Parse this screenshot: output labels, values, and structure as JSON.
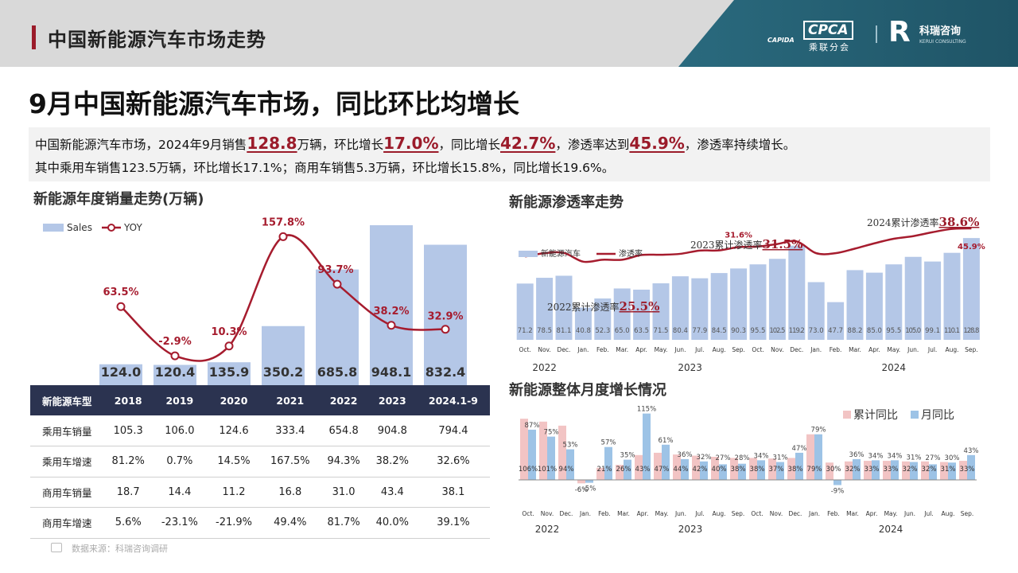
{
  "header": {
    "title": "中国新能源汽车市场走势",
    "cpca_logo": "CAPIDA",
    "cpca_box": "CPCA",
    "cpca_sub": "乘联分会",
    "kerui_mark": "R",
    "kerui_name": "科瑞咨询",
    "kerui_sub": "KERUI CONSULTING"
  },
  "main_title": "9月中国新能源汽车市场，同比环比均增长",
  "summary": {
    "l1_a": "中国新能源汽车市场，2024年9月销售",
    "l1_v1": "128.8",
    "l1_b": "万辆，环比增长",
    "l1_v2": "17.0%",
    "l1_c": "，同比增长",
    "l1_v3": "42.7%",
    "l1_d": "，渗透率达到",
    "l1_v4": "45.9%",
    "l1_e": "，渗透率持续增长。",
    "line2": "其中乘用车销售123.5万辆，环比增长17.1%；商用车销售5.3万辆，环比增长15.8%，同比增长19.6%。"
  },
  "sections": {
    "annual": "新能源年度销量走势(万辆)",
    "penetration": "新能源渗透率走势",
    "growth": "新能源整体月度增长情况"
  },
  "colors": {
    "bar": "#b4c7e7",
    "line": "#a61c2e",
    "pink": "#f2c4c4",
    "blue_bar": "#9dc3e6",
    "title_red": "#9b1b2a",
    "table_head": "#2b3350"
  },
  "chart_data": [
    {
      "id": "annual",
      "type": "bar",
      "legend": [
        "Sales",
        "YOY"
      ],
      "categories": [
        "2018",
        "2019",
        "2020",
        "2021",
        "2022",
        "2023",
        "2024.1-9"
      ],
      "series": [
        {
          "name": "Sales",
          "values": [
            124.0,
            120.4,
            135.9,
            350.2,
            685.8,
            948.1,
            832.4
          ],
          "labels": [
            "124.0",
            "120.4",
            "135.9",
            "350.2",
            "685.8",
            "948.1",
            "832.4"
          ]
        },
        {
          "name": "YOY",
          "values": [
            63.5,
            -2.9,
            10.3,
            157.8,
            93.7,
            38.2,
            32.9
          ],
          "labels": [
            "63.5%",
            "-2.9%",
            "10.3%",
            "157.8%",
            "93.7%",
            "38.2%",
            "32.9%"
          ]
        }
      ],
      "ylim": [
        0,
        1000
      ],
      "y2lim": [
        -20,
        170
      ]
    },
    {
      "id": "penetration",
      "type": "bar",
      "legend": [
        "新能源汽车",
        "渗透率"
      ],
      "categories": [
        "Oct.",
        "Nov.",
        "Dec.",
        "Jan.",
        "Feb.",
        "Mar.",
        "Apr.",
        "May.",
        "Jun.",
        "Jul.",
        "Aug.",
        "Sep.",
        "Oct.",
        "Nov.",
        "Dec.",
        "Jan.",
        "Feb.",
        "Mar.",
        "Apr.",
        "May.",
        "Jun.",
        "Jul.",
        "Aug.",
        "Sep."
      ],
      "years": [
        {
          "label": "2022",
          "from": 0,
          "to": 2
        },
        {
          "label": "2023",
          "from": 3,
          "to": 14
        },
        {
          "label": "2024",
          "from": 15,
          "to": 23
        }
      ],
      "series": [
        {
          "name": "新能源汽车",
          "values": [
            71.2,
            78.5,
            81.1,
            40.8,
            52.3,
            65.0,
            63.5,
            71.5,
            80.4,
            77.9,
            84.5,
            90.3,
            95.5,
            102.5,
            119.2,
            73.0,
            47.7,
            88.2,
            85.0,
            95.5,
            105.0,
            99.1,
            110.1,
            128.8
          ],
          "labels": [
            "71.2",
            "78.5",
            "81.1",
            "40.8",
            "52.3",
            "65.0",
            "63.5",
            "71.5",
            "80.4",
            "77.9",
            "84.5",
            "90.3",
            "95.5",
            "102.5",
            "119.2",
            "73.0",
            "47.7",
            "88.2",
            "85.0",
            "95.5",
            "105.0",
            "99.1",
            "110.1",
            "128.8"
          ]
        },
        {
          "name": "渗透率",
          "values": [
            24.5,
            27.0,
            27.2,
            20.5,
            22.0,
            22.0,
            25.6,
            25.8,
            26.5,
            29.0,
            29.1,
            31.6,
            32.0,
            34.0,
            36.0,
            27.0,
            27.0,
            30.5,
            34.5,
            38.0,
            40.0,
            43.0,
            45.5,
            45.9
          ]
        }
      ],
      "point_labels": [
        {
          "index": 11,
          "text": "31.6%"
        },
        {
          "index": 23,
          "text": "45.9%"
        }
      ],
      "annotations": [
        {
          "text": "2022累计渗透率",
          "value": "25.5%"
        },
        {
          "text": "2023累计渗透率",
          "value": "31.5%"
        },
        {
          "text": "2024累计渗透率",
          "value": "38.6%"
        }
      ],
      "ylim": [
        0,
        140
      ],
      "y2lim": [
        -30,
        55
      ]
    },
    {
      "id": "growth",
      "type": "bar",
      "legend": [
        "累计同比",
        "月同比"
      ],
      "categories": [
        "Oct.",
        "Nov.",
        "Dec.",
        "Jan.",
        "Feb.",
        "Mar.",
        "Apr.",
        "May.",
        "Jun.",
        "Jul.",
        "Aug.",
        "Sep.",
        "Oct.",
        "Nov.",
        "Dec.",
        "Jan.",
        "Feb.",
        "Mar.",
        "Apr.",
        "May.",
        "Jun.",
        "Jul.",
        "Aug.",
        "Sep."
      ],
      "years": [
        {
          "label": "2022",
          "from": 0,
          "to": 2
        },
        {
          "label": "2023",
          "from": 3,
          "to": 14
        },
        {
          "label": "2024",
          "from": 15,
          "to": 23
        }
      ],
      "series": [
        {
          "name": "累计同比",
          "values": [
            106,
            101,
            94,
            -6,
            21,
            26,
            43,
            47,
            44,
            42,
            40,
            38,
            38,
            37,
            38,
            79,
            30,
            32,
            33,
            33,
            32,
            32,
            31,
            33
          ],
          "labels": [
            "106%",
            "101%",
            "94%",
            "-6%",
            "21%",
            "26%",
            "43%",
            "47%",
            "44%",
            "42%",
            "40%",
            "38%",
            "38%",
            "37%",
            "38%",
            "79%",
            "30%",
            "32%",
            "33%",
            "33%",
            "32%",
            "32%",
            "31%",
            "33%"
          ]
        },
        {
          "name": "月同比",
          "values": [
            87,
            75,
            53,
            -5,
            57,
            35,
            115,
            61,
            36,
            32,
            27,
            28,
            34,
            31,
            47,
            79,
            -9,
            36,
            34,
            34,
            31,
            27,
            30,
            43
          ],
          "labels": [
            "87%",
            "75%",
            "53%",
            "-5%",
            "57%",
            "35%",
            "115%",
            "61%",
            "36%",
            "32%",
            "27%",
            "28%",
            "34%",
            "31%",
            "47%",
            "79%",
            "-9%",
            "36%",
            "34%",
            "34%",
            "31%",
            "27%",
            "30%",
            "43%"
          ]
        }
      ],
      "ylim": [
        -20,
        120
      ]
    }
  ],
  "table": {
    "headers": [
      "新能源车型",
      "2018",
      "2019",
      "2020",
      "2021",
      "2022",
      "2023",
      "2024.1-9"
    ],
    "rows": [
      [
        "乘用车销量",
        "105.3",
        "106.0",
        "124.6",
        "333.4",
        "654.8",
        "904.8",
        "794.4"
      ],
      [
        "乘用车增速",
        "81.2%",
        "0.7%",
        "14.5%",
        "167.5%",
        "94.3%",
        "38.2%",
        "32.6%"
      ],
      [
        "商用车销量",
        "18.7",
        "14.4",
        "11.2",
        "16.8",
        "31.0",
        "43.4",
        "38.1"
      ],
      [
        "商用车增速",
        "5.6%",
        "-23.1%",
        "-21.9%",
        "49.4%",
        "81.7%",
        "40.0%",
        "39.1%"
      ]
    ]
  },
  "source": "数据来源：科瑞咨询调研"
}
